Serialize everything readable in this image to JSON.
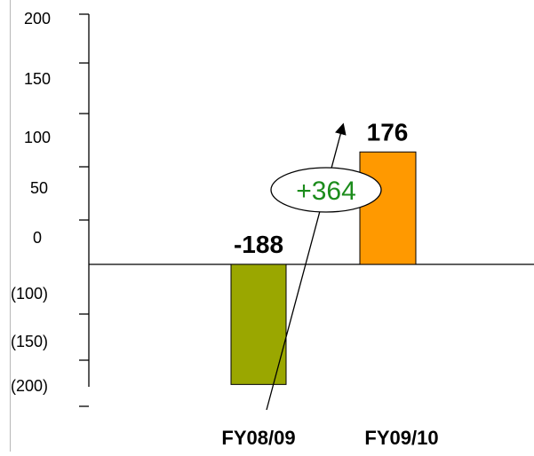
{
  "chart_data": {
    "type": "bar",
    "title": "",
    "xlabel": "",
    "ylabel": "",
    "categories": [
      "FY08/09",
      "FY09/10"
    ],
    "values": [
      -188,
      176
    ],
    "data_labels": [
      "-188",
      "176"
    ],
    "bar_colors": [
      "#9aa700",
      "#ff9900"
    ],
    "y_tick_labels": [
      "200",
      "150",
      "100",
      "50",
      "0",
      "(100)",
      "(150)",
      "(200)"
    ],
    "annotation": {
      "text": "+364",
      "color": "#1c8c1c"
    },
    "grid": false,
    "legend": "none"
  }
}
